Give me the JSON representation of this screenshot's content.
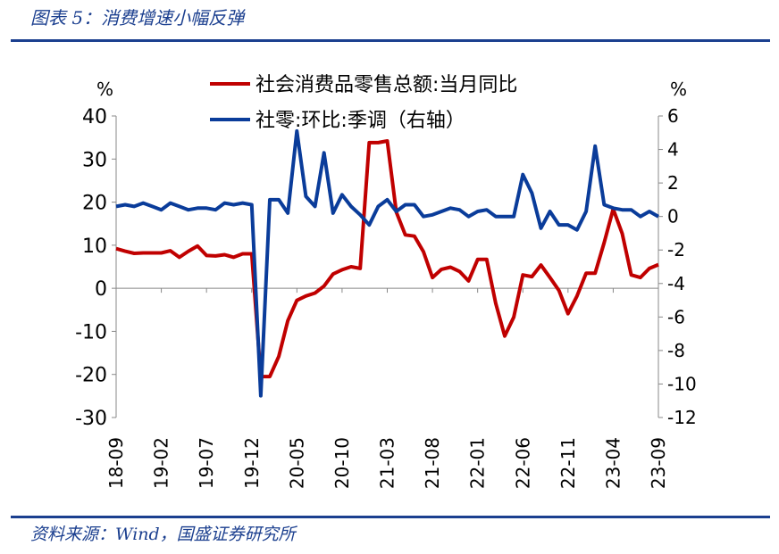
{
  "title": "图表 5：消费增速小幅反弹",
  "source": "资料来源：Wind，国盛证券研究所",
  "chart_data": {
    "type": "line",
    "left_unit": "%",
    "right_unit": "%",
    "y_left": {
      "min": -30,
      "max": 40,
      "ticks": [
        40,
        30,
        20,
        10,
        0,
        -10,
        -20,
        -30
      ]
    },
    "y_right": {
      "min": -12,
      "max": 6,
      "ticks": [
        6,
        4,
        2,
        0,
        -2,
        -4,
        -6,
        -8,
        -10,
        -12
      ]
    },
    "x_start": "2018-09",
    "x_end": "2023-09",
    "x_tick_labels": [
      "18-09",
      "19-02",
      "19-07",
      "19-12",
      "20-05",
      "20-10",
      "21-03",
      "21-08",
      "22-01",
      "22-06",
      "22-11",
      "23-04",
      "23-09"
    ],
    "legend_position": "top",
    "series": [
      {
        "name": "社会消费品零售总额:当月同比",
        "axis": "left",
        "color": "#c00000",
        "points": [
          [
            "2018-09",
            9.2
          ],
          [
            "2018-10",
            8.6
          ],
          [
            "2018-11",
            8.1
          ],
          [
            "2018-12",
            8.2
          ],
          [
            "2019-01",
            8.2
          ],
          [
            "2019-02",
            8.2
          ],
          [
            "2019-03",
            8.7
          ],
          [
            "2019-04",
            7.2
          ],
          [
            "2019-05",
            8.6
          ],
          [
            "2019-06",
            9.8
          ],
          [
            "2019-07",
            7.6
          ],
          [
            "2019-08",
            7.5
          ],
          [
            "2019-09",
            7.8
          ],
          [
            "2019-10",
            7.2
          ],
          [
            "2019-11",
            8.0
          ],
          [
            "2019-12",
            8.0
          ],
          [
            "2020-01",
            -20.5
          ],
          [
            "2020-02",
            -20.5
          ],
          [
            "2020-03",
            -15.8
          ],
          [
            "2020-04",
            -7.5
          ],
          [
            "2020-05",
            -2.8
          ],
          [
            "2020-06",
            -1.8
          ],
          [
            "2020-07",
            -1.1
          ],
          [
            "2020-08",
            0.5
          ],
          [
            "2020-09",
            3.3
          ],
          [
            "2020-10",
            4.3
          ],
          [
            "2020-11",
            5.0
          ],
          [
            "2020-12",
            4.6
          ],
          [
            "2021-01",
            33.8
          ],
          [
            "2021-02",
            33.8
          ],
          [
            "2021-03",
            34.2
          ],
          [
            "2021-04",
            17.7
          ],
          [
            "2021-05",
            12.4
          ],
          [
            "2021-06",
            12.1
          ],
          [
            "2021-07",
            8.5
          ],
          [
            "2021-08",
            2.5
          ],
          [
            "2021-09",
            4.4
          ],
          [
            "2021-10",
            4.9
          ],
          [
            "2021-11",
            3.9
          ],
          [
            "2021-12",
            1.7
          ],
          [
            "2022-01",
            6.7
          ],
          [
            "2022-02",
            6.7
          ],
          [
            "2022-03",
            -3.5
          ],
          [
            "2022-04",
            -11.1
          ],
          [
            "2022-05",
            -6.7
          ],
          [
            "2022-06",
            3.1
          ],
          [
            "2022-07",
            2.7
          ],
          [
            "2022-08",
            5.4
          ],
          [
            "2022-09",
            2.5
          ],
          [
            "2022-10",
            -0.5
          ],
          [
            "2022-11",
            -5.9
          ],
          [
            "2022-12",
            -1.8
          ],
          [
            "2023-01",
            3.5
          ],
          [
            "2023-02",
            3.5
          ],
          [
            "2023-03",
            10.6
          ],
          [
            "2023-04",
            18.4
          ],
          [
            "2023-05",
            12.7
          ],
          [
            "2023-06",
            3.1
          ],
          [
            "2023-07",
            2.5
          ],
          [
            "2023-08",
            4.6
          ],
          [
            "2023-09",
            5.5
          ]
        ]
      },
      {
        "name": "社零:环比:季调（右轴）",
        "axis": "right",
        "color": "#0a3c9a",
        "points": [
          [
            "2018-09",
            0.6
          ],
          [
            "2018-10",
            0.7
          ],
          [
            "2018-11",
            0.6
          ],
          [
            "2018-12",
            0.8
          ],
          [
            "2019-01",
            0.6
          ],
          [
            "2019-02",
            0.4
          ],
          [
            "2019-03",
            0.8
          ],
          [
            "2019-04",
            0.6
          ],
          [
            "2019-05",
            0.4
          ],
          [
            "2019-06",
            0.5
          ],
          [
            "2019-07",
            0.5
          ],
          [
            "2019-08",
            0.4
          ],
          [
            "2019-09",
            0.8
          ],
          [
            "2019-10",
            0.7
          ],
          [
            "2019-11",
            0.8
          ],
          [
            "2019-12",
            0.7
          ],
          [
            "2020-01",
            -10.7
          ],
          [
            "2020-02",
            1.0
          ],
          [
            "2020-03",
            1.0
          ],
          [
            "2020-04",
            0.2
          ],
          [
            "2020-05",
            5.1
          ],
          [
            "2020-06",
            1.2
          ],
          [
            "2020-07",
            0.6
          ],
          [
            "2020-08",
            3.8
          ],
          [
            "2020-09",
            0.2
          ],
          [
            "2020-10",
            1.3
          ],
          [
            "2020-11",
            0.6
          ],
          [
            "2020-12",
            0.1
          ],
          [
            "2021-01",
            -0.5
          ],
          [
            "2021-02",
            0.6
          ],
          [
            "2021-03",
            1.0
          ],
          [
            "2021-04",
            0.3
          ],
          [
            "2021-05",
            0.7
          ],
          [
            "2021-06",
            0.7
          ],
          [
            "2021-07",
            0.0
          ],
          [
            "2021-08",
            0.1
          ],
          [
            "2021-09",
            0.3
          ],
          [
            "2021-10",
            0.5
          ],
          [
            "2021-11",
            0.4
          ],
          [
            "2021-12",
            0.0
          ],
          [
            "2022-01",
            0.3
          ],
          [
            "2022-02",
            0.4
          ],
          [
            "2022-03",
            0.0
          ],
          [
            "2022-04",
            0.0
          ],
          [
            "2022-05",
            0.0
          ],
          [
            "2022-06",
            2.5
          ],
          [
            "2022-07",
            1.4
          ],
          [
            "2022-08",
            -0.7
          ],
          [
            "2022-09",
            0.3
          ],
          [
            "2022-10",
            -0.5
          ],
          [
            "2022-11",
            -0.5
          ],
          [
            "2022-12",
            -0.8
          ],
          [
            "2023-01",
            0.3
          ],
          [
            "2023-02",
            4.2
          ],
          [
            "2023-03",
            0.7
          ],
          [
            "2023-04",
            0.5
          ],
          [
            "2023-05",
            0.4
          ],
          [
            "2023-06",
            0.4
          ],
          [
            "2023-07",
            0.0
          ],
          [
            "2023-08",
            0.3
          ],
          [
            "2023-09",
            0.0
          ]
        ]
      }
    ]
  }
}
